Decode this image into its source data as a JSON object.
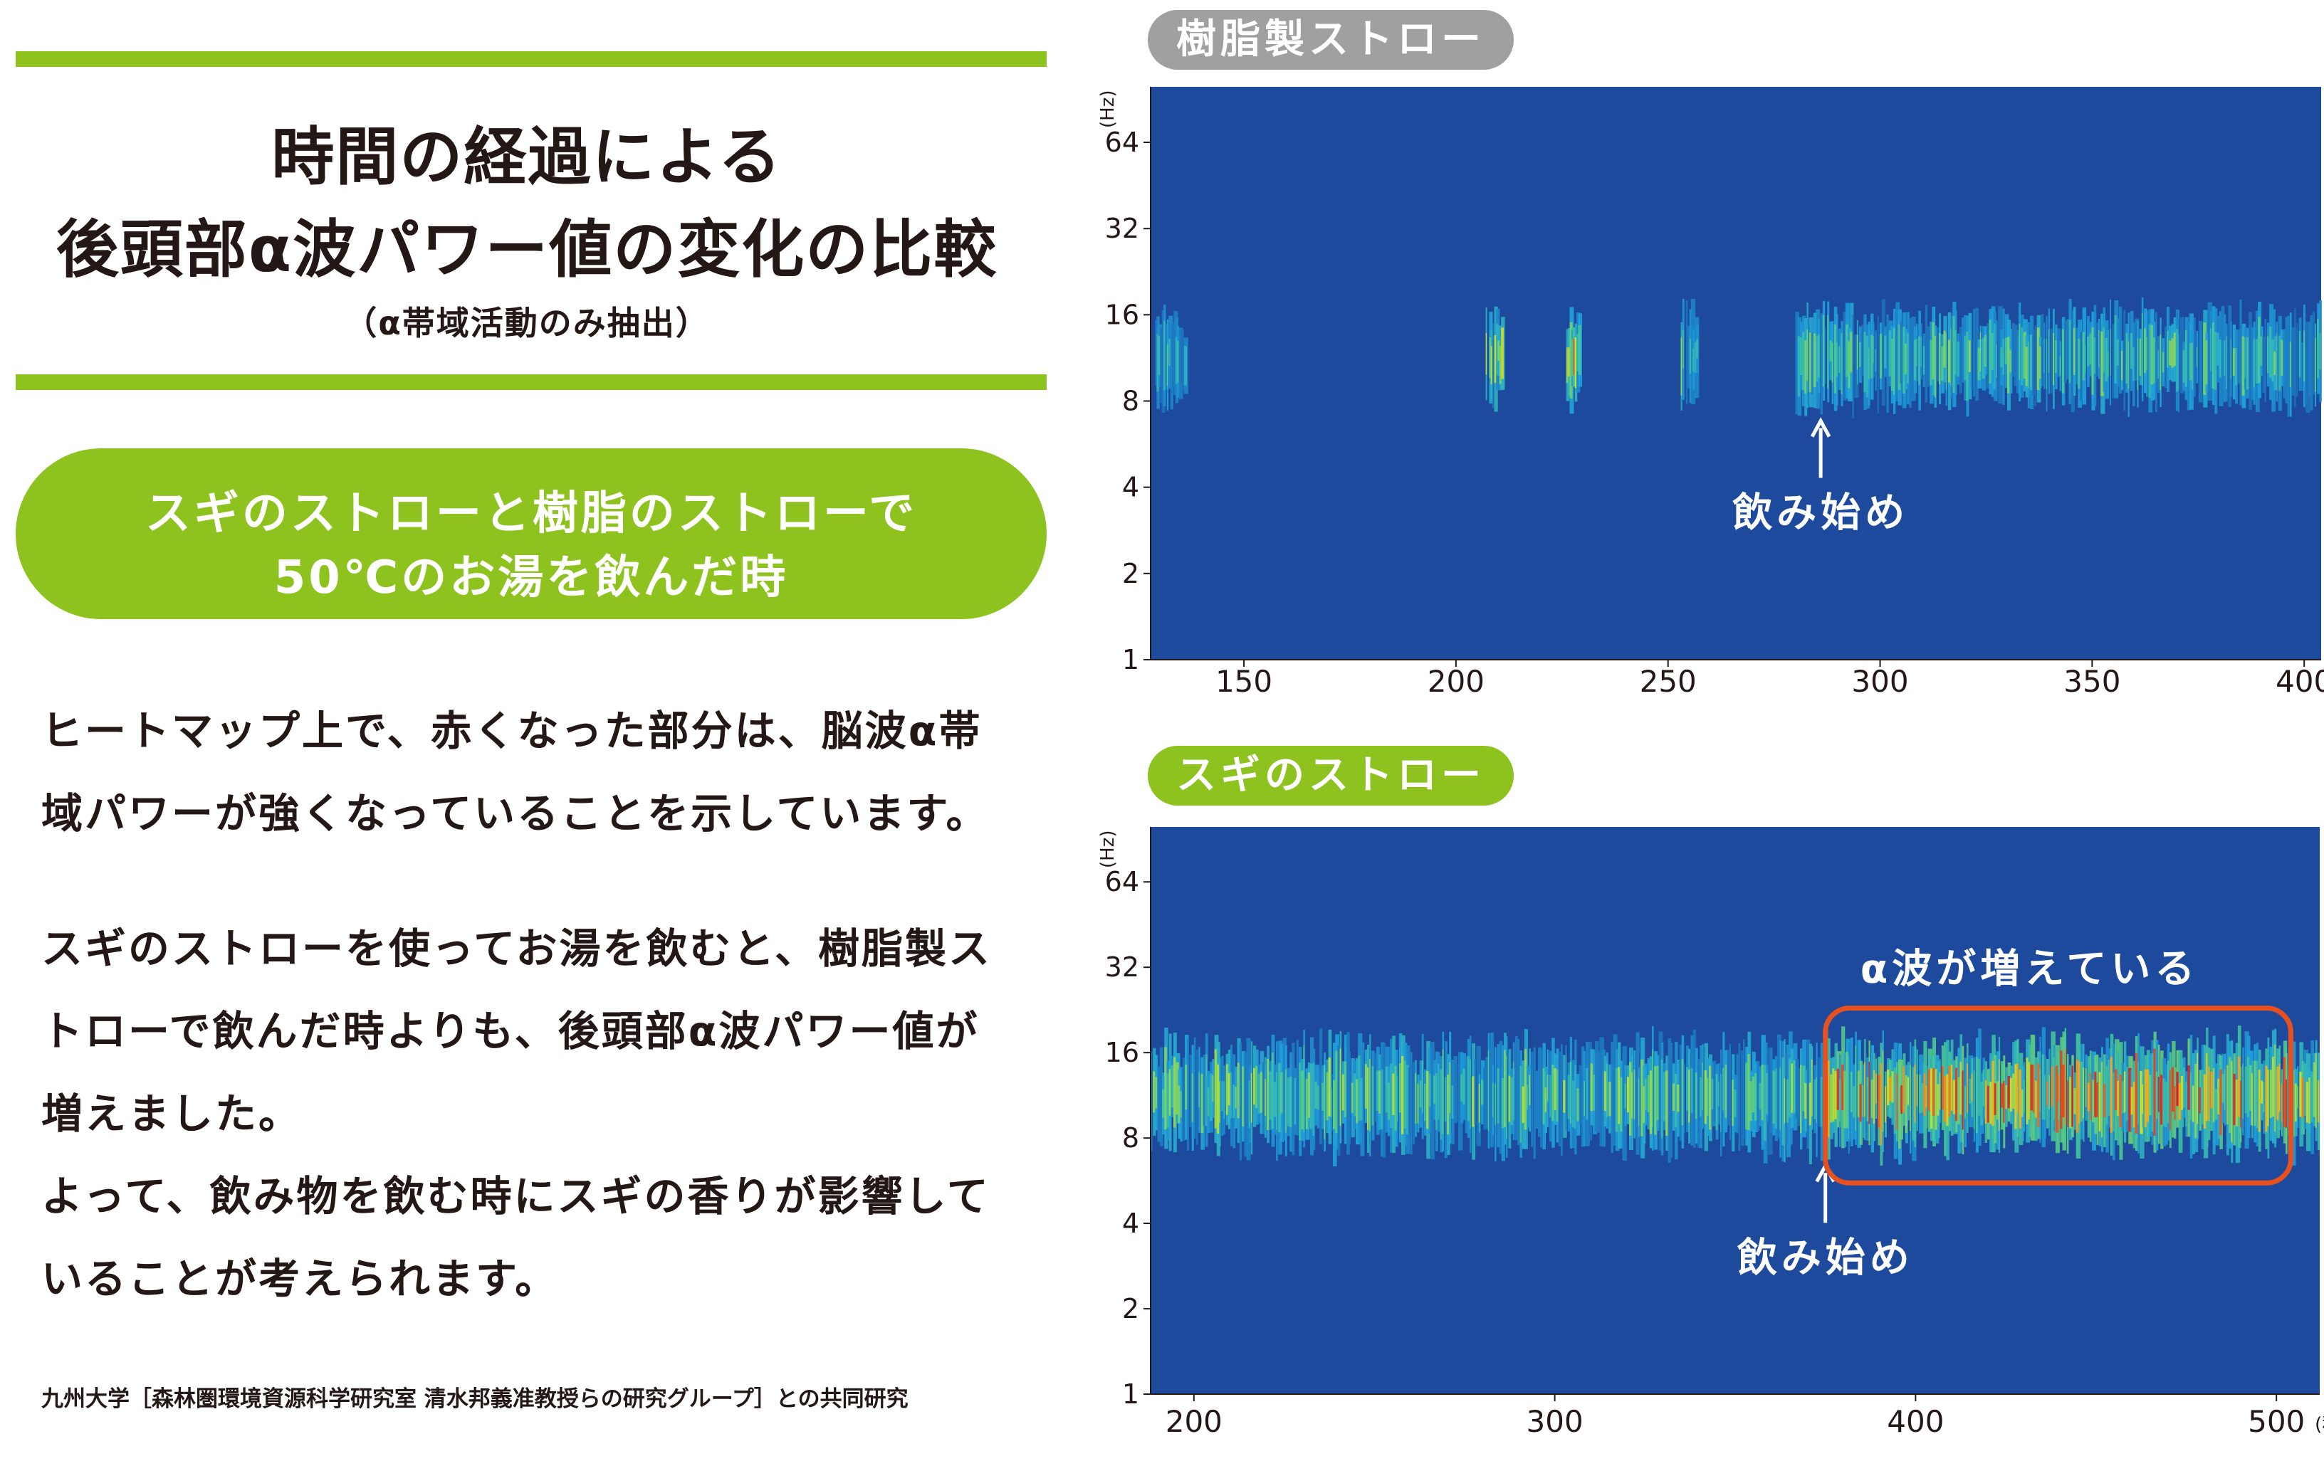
{
  "left_panel": {
    "title_line1": "時間の経過による",
    "title_line2": "後頭部α波パワー値の変化の比較",
    "title_sub": "（α帯域活動のみ抽出）",
    "pill_line1": "スギのストローと樹脂のストローで",
    "pill_line2": "50℃のお湯を飲んだ時",
    "paragraph1": [
      "ヒートマップ上で、赤くなった部分は、脳波α帯",
      "域パワーが強くなっていることを示しています。"
    ],
    "paragraph2": [
      "スギのストローを使ってお湯を飲むと、樹脂製ス",
      "トローで飲んだ時よりも、後頭部α波パワー値が",
      "増えました。",
      "よって、飲み物を飲む時にスギの香りが影響して",
      "いることが考えられます。"
    ],
    "credit": "九州大学［森林圏環境資源科学研究室 清水邦義准教授らの研究グループ］との共同研究"
  },
  "colors": {
    "accent_green": "#8dc21f",
    "badge_gray": "#9fa0a0",
    "heatmap_background": "#1d4a9c",
    "highlight_box": "#e6511f"
  },
  "chart_data": [
    {
      "type": "heatmap",
      "badge": "樹脂製ストロー",
      "x_ticks": [
        "150",
        "200",
        "250",
        "300",
        "350",
        "400"
      ],
      "x_tick_values": [
        150,
        200,
        250,
        300,
        350,
        400
      ],
      "x_unit": "(秒)",
      "xlim": [
        128,
        404
      ],
      "y_ticks": [
        "1",
        "2",
        "4",
        "8",
        "16",
        "32",
        "64"
      ],
      "y_tick_values": [
        1,
        2,
        4,
        8,
        16,
        32,
        64
      ],
      "y_unit": "(Hz)",
      "y_scale": "log2",
      "ylim": [
        1,
        100
      ],
      "alpha_band_hz": [
        8,
        16
      ],
      "event_label": "飲み始め",
      "event_x": 286,
      "active_segments": [
        {
          "start": 129,
          "end": 136,
          "intensity": 0.45
        },
        {
          "start": 207,
          "end": 211,
          "intensity": 0.6
        },
        {
          "start": 226,
          "end": 229,
          "intensity": 0.8
        },
        {
          "start": 253,
          "end": 257,
          "intensity": 0.55
        },
        {
          "start": 280,
          "end": 404,
          "intensity": 0.5
        }
      ]
    },
    {
      "type": "heatmap",
      "badge": "スギのストロー",
      "x_ticks": [
        "200",
        "300",
        "400",
        "500"
      ],
      "x_tick_values": [
        200,
        300,
        400,
        500
      ],
      "x_unit": "(秒)",
      "xlim": [
        188,
        512
      ],
      "y_ticks": [
        "1",
        "2",
        "4",
        "8",
        "16",
        "32",
        "64"
      ],
      "y_tick_values": [
        1,
        2,
        4,
        8,
        16,
        32,
        64
      ],
      "y_unit": "(Hz)",
      "y_scale": "log2",
      "ylim": [
        1,
        100
      ],
      "alpha_band_hz": [
        7.5,
        17
      ],
      "event_label": "飲み始め",
      "event_x": 375,
      "highlight_label": "α波が増えている",
      "highlight_range": [
        375,
        504
      ],
      "active_segments": [
        {
          "start": 188,
          "end": 375,
          "intensity": 0.55
        },
        {
          "start": 375,
          "end": 512,
          "intensity": 0.85
        }
      ]
    }
  ]
}
